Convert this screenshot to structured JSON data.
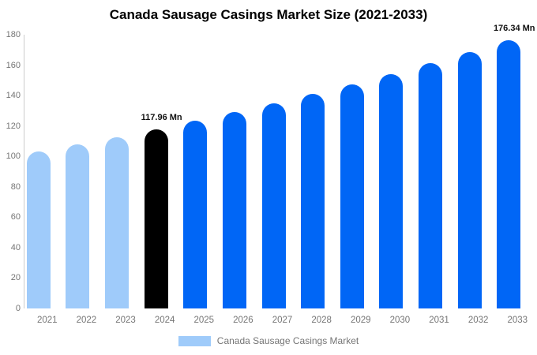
{
  "title": "Canada Sausage Casings Market Size (2021-2033)",
  "legend": {
    "label": "Canada Sausage Casings Market",
    "swatch_color": "#9FCBFA"
  },
  "chart_data": {
    "type": "bar",
    "title": "Canada Sausage Casings Market Size (2021-2033)",
    "categories": [
      "2021",
      "2022",
      "2023",
      "2024",
      "2025",
      "2026",
      "2027",
      "2028",
      "2029",
      "2030",
      "2031",
      "2032",
      "2033"
    ],
    "values": [
      103.2,
      107.9,
      112.8,
      117.96,
      123.4,
      129.0,
      134.9,
      141.1,
      147.5,
      154.3,
      161.3,
      168.7,
      176.34
    ],
    "unit": "Mn",
    "xlabel": "",
    "ylabel": "",
    "ylim": [
      0,
      180
    ],
    "yticks": [
      0,
      20,
      40,
      60,
      80,
      100,
      120,
      140,
      160,
      180
    ],
    "grid": false,
    "legend_position": "bottom",
    "bar_styles": [
      "historical",
      "historical",
      "historical",
      "highlight",
      "forecast",
      "forecast",
      "forecast",
      "forecast",
      "forecast",
      "forecast",
      "forecast",
      "forecast",
      "forecast"
    ],
    "palette": {
      "historical": "#9FCBFA",
      "highlight": "#000000",
      "forecast": "#0066F6"
    },
    "axis_text_color": "#757575",
    "axis_line_color": "#CCCCCC",
    "annotations": [
      {
        "category": "2024",
        "text": "117.96 Mn"
      },
      {
        "category": "2033",
        "text": "176.34 Mn"
      }
    ]
  }
}
